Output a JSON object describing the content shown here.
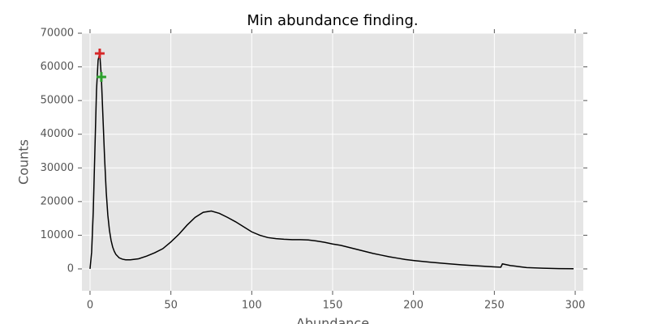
{
  "chart_data": {
    "type": "line",
    "title": "Min abundance finding.",
    "xlabel": "Abundance",
    "ylabel": "Counts",
    "x": [
      0,
      1,
      2,
      3,
      4,
      5,
      6,
      7,
      8,
      9,
      10,
      11,
      12,
      13,
      14,
      15,
      16,
      18,
      20,
      22,
      25,
      30,
      35,
      40,
      45,
      50,
      55,
      60,
      65,
      70,
      75,
      80,
      85,
      90,
      95,
      100,
      105,
      110,
      115,
      120,
      125,
      130,
      135,
      140,
      145,
      150,
      155,
      160,
      165,
      170,
      175,
      180,
      185,
      190,
      195,
      200,
      210,
      220,
      230,
      240,
      250,
      254,
      255,
      260,
      265,
      270,
      280,
      290,
      299
    ],
    "series": [
      {
        "color": "#000000",
        "values": [
          0,
          5000,
          17000,
          35000,
          53000,
          62000,
          64000,
          57000,
          45000,
          33000,
          23000,
          16000,
          11500,
          8500,
          6500,
          5200,
          4300,
          3300,
          2900,
          2700,
          2700,
          3000,
          3800,
          4800,
          6000,
          8000,
          10300,
          13000,
          15300,
          16800,
          17200,
          16500,
          15300,
          14000,
          12500,
          11000,
          10000,
          9300,
          9000,
          8800,
          8700,
          8700,
          8600,
          8300,
          7900,
          7400,
          7000,
          6400,
          5800,
          5200,
          4600,
          4100,
          3600,
          3200,
          2800,
          2500,
          2000,
          1600,
          1200,
          900,
          600,
          500,
          1500,
          1000,
          700,
          400,
          200,
          100,
          50
        ]
      }
    ],
    "points": [
      {
        "x": 6,
        "y": 64000,
        "color": "#d62728"
      },
      {
        "x": 7,
        "y": 57000,
        "color": "#2ca02c"
      }
    ],
    "xlim": [
      -5,
      305
    ],
    "ylim": [
      -6500,
      70000
    ],
    "xticks": [
      0,
      50,
      100,
      150,
      200,
      250,
      300
    ],
    "yticks": [
      0,
      10000,
      20000,
      30000,
      40000,
      50000,
      60000,
      70000
    ],
    "grid": true
  }
}
